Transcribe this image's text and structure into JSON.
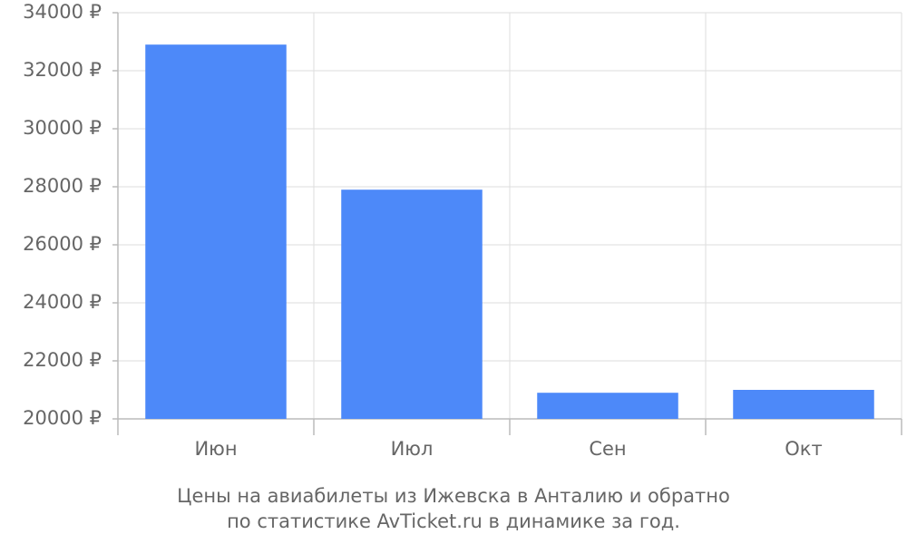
{
  "chart_data": {
    "type": "bar",
    "title": "Цены на авиабилеты из Ижевска в Анталию и обратно",
    "subtitle": "по статистике AvTicket.ru в динамике за год.",
    "categories": [
      "Июн",
      "Июл",
      "Сен",
      "Окт"
    ],
    "values": [
      32900,
      27900,
      20900,
      21000
    ],
    "color": "#4d89f9",
    "ylim": [
      20000,
      34000
    ],
    "yticks": [
      {
        "value": 20000,
        "label": "20000 ₽"
      },
      {
        "value": 22000,
        "label": "22000 ₽"
      },
      {
        "value": 24000,
        "label": "24000 ₽"
      },
      {
        "value": 26000,
        "label": "26000 ₽"
      },
      {
        "value": 28000,
        "label": "28000 ₽"
      },
      {
        "value": 30000,
        "label": "30000 ₽"
      },
      {
        "value": 32000,
        "label": "32000 ₽"
      },
      {
        "value": 34000,
        "label": "34000 ₽"
      }
    ],
    "grid": true
  }
}
